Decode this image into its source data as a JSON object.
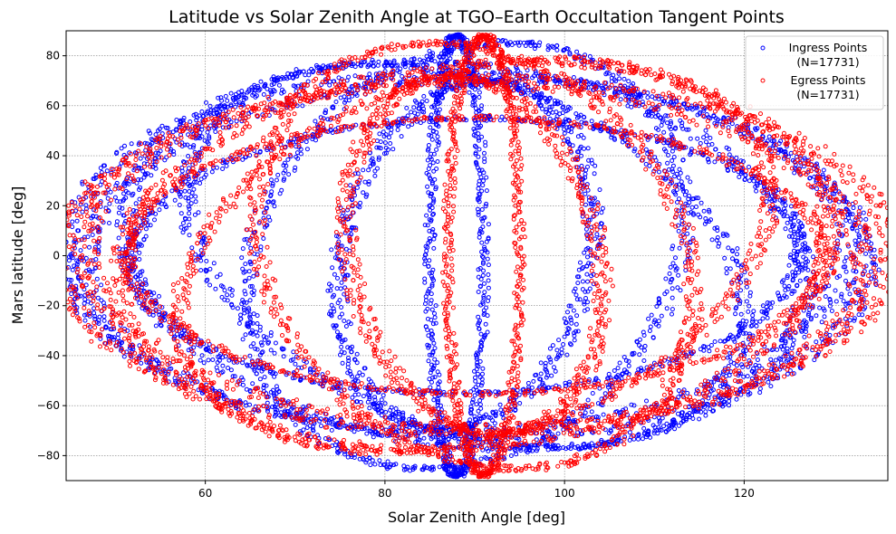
{
  "chart_data": {
    "type": "scatter",
    "title": "Latitude vs Solar Zenith Angle at TGO–Earth Occultation Tangent Points",
    "xlabel": "Solar Zenith Angle [deg]",
    "ylabel": "Mars latitude [deg]",
    "xlim": [
      44.5,
      136
    ],
    "ylim": [
      -90,
      90
    ],
    "xticks": [
      60,
      80,
      100,
      120
    ],
    "yticks": [
      -80,
      -60,
      -40,
      -20,
      0,
      20,
      40,
      60,
      80
    ],
    "grid": true,
    "legend_position": "top-right",
    "marker": "hollow-circle",
    "series": [
      {
        "name": "Ingress Points\n(N=17731)",
        "color": "#0000ff",
        "loops": [
          {
            "cx": 89,
            "cy": 0,
            "rx": 45,
            "ry": 74,
            "rot": 11,
            "spread": 2.8
          },
          {
            "cx": 89,
            "cy": 0,
            "rx": 38,
            "ry": 80,
            "rot": 16,
            "spread": 2.5
          },
          {
            "cx": 89,
            "cy": 0,
            "rx": 30,
            "ry": 82,
            "rot": 22,
            "spread": 2.2
          },
          {
            "cx": 89,
            "cy": 0,
            "rx": 24,
            "ry": 86,
            "rot": -8,
            "spread": 2.2
          },
          {
            "cx": 89,
            "cy": 0,
            "rx": 40,
            "ry": 60,
            "rot": -30,
            "spread": 2.0
          },
          {
            "cx": 89,
            "cy": 0,
            "rx": 43,
            "ry": 72,
            "rot": -14,
            "spread": 3.0
          },
          {
            "cx": 88,
            "cy": 0,
            "rx": 3,
            "ry": 88,
            "rot": 0,
            "spread": 1.2
          },
          {
            "cx": 89,
            "cy": 0,
            "rx": 14,
            "ry": 70,
            "rot": -5,
            "spread": 2.4
          }
        ]
      },
      {
        "name": "Egress Points\n(N=17731)",
        "color": "#ff0000",
        "loops": [
          {
            "cx": 90,
            "cy": 0,
            "rx": 47,
            "ry": 72,
            "rot": -11,
            "spread": 2.8
          },
          {
            "cx": 90,
            "cy": 0,
            "rx": 40,
            "ry": 80,
            "rot": -16,
            "spread": 2.5
          },
          {
            "cx": 90,
            "cy": 0,
            "rx": 32,
            "ry": 84,
            "rot": -22,
            "spread": 2.2
          },
          {
            "cx": 90,
            "cy": 0,
            "rx": 24,
            "ry": 86,
            "rot": 8,
            "spread": 2.2
          },
          {
            "cx": 90,
            "cy": 0,
            "rx": 42,
            "ry": 60,
            "rot": 30,
            "spread": 2.0
          },
          {
            "cx": 90,
            "cy": 0,
            "rx": 44,
            "ry": 70,
            "rot": 14,
            "spread": 3.0
          },
          {
            "cx": 91,
            "cy": 0,
            "rx": 4,
            "ry": 88,
            "rot": 0,
            "spread": 1.2
          },
          {
            "cx": 90,
            "cy": 0,
            "rx": 14,
            "ry": 72,
            "rot": 5,
            "spread": 2.4
          }
        ]
      }
    ]
  }
}
